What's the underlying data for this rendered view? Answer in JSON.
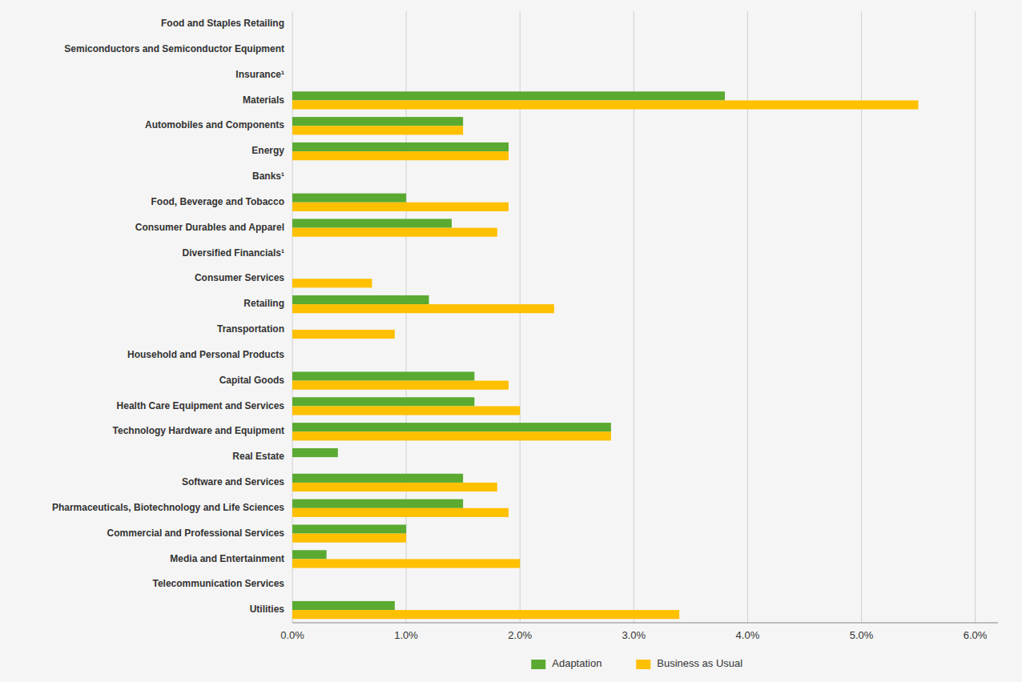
{
  "chart_data": {
    "type": "bar",
    "orientation": "horizontal",
    "categories": [
      "Utilities",
      "Telecommunication Services",
      "Media and Entertainment",
      "Commercial and Professional Services",
      "Pharmaceuticals, Biotechnology and Life Sciences",
      "Software and Services",
      "Real Estate",
      "Technology Hardware and Equipment",
      "Health Care Equipment and Services",
      "Capital Goods",
      "Household and Personal Products",
      "Transportation",
      "Retailing",
      "Consumer Services",
      "Diversified Financials¹",
      "Consumer Durables and Apparel",
      "Food, Beverage and Tobacco",
      "Banks¹",
      "Energy",
      "Automobiles and Components",
      "Materials",
      "Insurance¹",
      "Semiconductors and Semiconductor Equipment",
      "Food and Staples Retailing"
    ],
    "series": [
      {
        "name": "Adaptation",
        "color": "#5aaa31",
        "values": [
          0.009,
          0.0,
          0.003,
          0.01,
          0.015,
          0.015,
          0.004,
          0.028,
          0.016,
          0.016,
          0.0,
          0.0,
          0.012,
          0.0,
          0.0,
          0.014,
          0.01,
          0.0,
          0.019,
          0.015,
          0.038,
          0.0,
          0.0,
          0.0
        ]
      },
      {
        "name": "Business as Usual",
        "color": "#ffc000",
        "values": [
          0.034,
          0.0,
          0.02,
          0.01,
          0.019,
          0.018,
          0.0,
          0.028,
          0.02,
          0.019,
          0.0,
          0.009,
          0.023,
          0.007,
          0.0,
          0.018,
          0.019,
          0.0,
          0.019,
          0.015,
          0.055,
          0.0,
          0.0,
          0.0
        ]
      }
    ],
    "xlim": [
      0.0,
      0.062
    ],
    "xticks": [
      {
        "value": 0.0,
        "label": "0.0%"
      },
      {
        "value": 0.01,
        "label": "1.0%"
      },
      {
        "value": 0.02,
        "label": "2.0%"
      },
      {
        "value": 0.03,
        "label": "3.0%"
      },
      {
        "value": 0.04,
        "label": "4.0%"
      },
      {
        "value": 0.05,
        "label": "5.0%"
      },
      {
        "value": 0.06,
        "label": "6.0%"
      }
    ],
    "grid": true,
    "legend": "bottom"
  }
}
